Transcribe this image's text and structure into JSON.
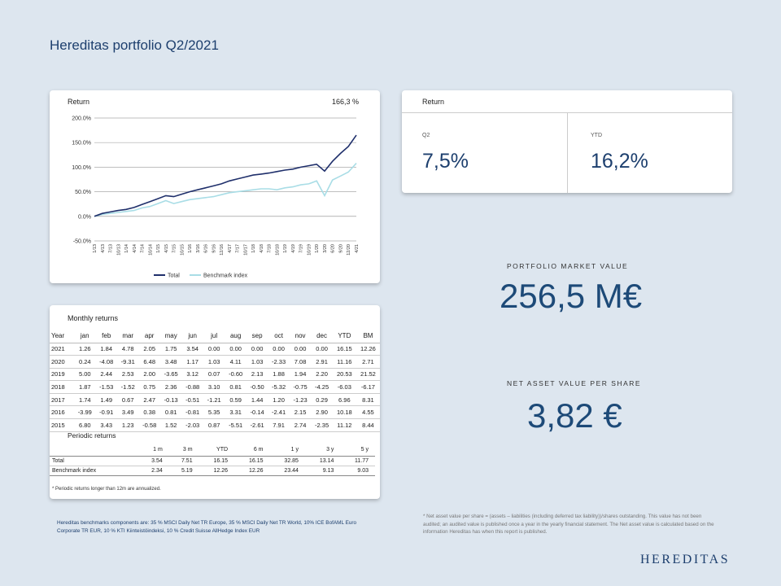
{
  "page": {
    "title": "Hereditas portfolio Q2/2021"
  },
  "colors": {
    "total": "#1f2f6b",
    "benchmark": "#a9dde6",
    "accent": "#1d4a78"
  },
  "chart_card": {
    "label": "Return",
    "value": "166,3 %"
  },
  "chart_data": {
    "type": "line",
    "ylim": [
      -50,
      200
    ],
    "yticks": [
      "200.0%",
      "150.0%",
      "100.0%",
      "50.0%",
      "0.0%",
      "-50.0%"
    ],
    "ytick_values": [
      200,
      150,
      100,
      50,
      0,
      -50
    ],
    "x_tick_labels": [
      "1/13",
      "4/13",
      "7/13",
      "10/13",
      "1/14",
      "4/14",
      "7/14",
      "10/14",
      "1/15",
      "4/15",
      "7/15",
      "10/15",
      "1/16",
      "3/16",
      "6/16",
      "9/16",
      "12/16",
      "4/17",
      "7/17",
      "10/17",
      "1/18",
      "4/18",
      "7/18",
      "10/18",
      "1/19",
      "4/19",
      "7/19",
      "10/19",
      "1/20",
      "3/20",
      "6/20",
      "9/20",
      "12/20",
      "4/21"
    ],
    "series": [
      {
        "name": "Total",
        "values": [
          0,
          6,
          9,
          12,
          14,
          18,
          24,
          30,
          36,
          42,
          40,
          45,
          50,
          54,
          58,
          62,
          66,
          72,
          76,
          80,
          84,
          86,
          88,
          91,
          94,
          96,
          100,
          103,
          106,
          92,
          112,
          128,
          142,
          165
        ]
      },
      {
        "name": "Benchmark index",
        "values": [
          0,
          4,
          6,
          8,
          10,
          12,
          17,
          20,
          26,
          32,
          26,
          30,
          34,
          36,
          38,
          40,
          44,
          48,
          50,
          52,
          54,
          56,
          56,
          54,
          58,
          60,
          64,
          66,
          72,
          42,
          74,
          82,
          90,
          108
        ]
      }
    ]
  },
  "return_card": {
    "label": "Return",
    "q2_label": "Q2",
    "q2_value": "7,5%",
    "ytd_label": "YTD",
    "ytd_value": "16,2%"
  },
  "kpis": {
    "market_label": "PORTFOLIO MARKET VALUE",
    "market_value": "256,5 M€",
    "nav_label": "NET ASSET VALUE PER SHARE",
    "nav_value": "3,82 €"
  },
  "monthly": {
    "title": "Monthly returns",
    "headers": [
      "Year",
      "jan",
      "feb",
      "mar",
      "apr",
      "may",
      "jun",
      "jul",
      "aug",
      "sep",
      "oct",
      "nov",
      "dec",
      "YTD",
      "BM"
    ],
    "rows": [
      [
        "2021",
        "1.26",
        "1.84",
        "4.78",
        "2.05",
        "1.75",
        "3.54",
        "0.00",
        "0.00",
        "0.00",
        "0.00",
        "0.00",
        "0.00",
        "16.15",
        "12.26"
      ],
      [
        "2020",
        "0.24",
        "-4.08",
        "-9.31",
        "6.48",
        "3.48",
        "1.17",
        "1.03",
        "4.11",
        "1.03",
        "-2.33",
        "7.08",
        "2.91",
        "11.16",
        "2.71"
      ],
      [
        "2019",
        "5.00",
        "2.44",
        "2.53",
        "2.00",
        "-3.65",
        "3.12",
        "0.07",
        "-0.60",
        "2.13",
        "1.88",
        "1.94",
        "2.20",
        "20.53",
        "21.52"
      ],
      [
        "2018",
        "1.87",
        "-1.53",
        "-1.52",
        "0.75",
        "2.36",
        "-0.88",
        "3.10",
        "0.81",
        "-0.50",
        "-5.32",
        "-0.75",
        "-4.25",
        "-6.03",
        "-6.17"
      ],
      [
        "2017",
        "1.74",
        "1.49",
        "0.67",
        "2.47",
        "-0.13",
        "-0.51",
        "-1.21",
        "0.59",
        "1.44",
        "1.20",
        "-1.23",
        "0.29",
        "6.96",
        "8.31"
      ],
      [
        "2016",
        "-3.99",
        "-0.91",
        "3.49",
        "0.38",
        "0.81",
        "-0.81",
        "5.35",
        "3.31",
        "-0.14",
        "-2.41",
        "2.15",
        "2.90",
        "10.18",
        "4.55"
      ],
      [
        "2015",
        "6.80",
        "3.43",
        "1.23",
        "-0.58",
        "1.52",
        "-2.03",
        "0.87",
        "-5.51",
        "-2.61",
        "7.91",
        "2.74",
        "-2.35",
        "11.12",
        "8.44"
      ]
    ]
  },
  "periodic": {
    "title": "Periodic returns",
    "headers": [
      "",
      "1 m",
      "3 m",
      "YTD",
      "6 m",
      "1 y",
      "3 y",
      "5 y"
    ],
    "rows": [
      [
        "Total",
        "3.54",
        "7.51",
        "16.15",
        "16.15",
        "32.85",
        "13.14",
        "11.77"
      ],
      [
        "Benchmark index",
        "2.34",
        "5.19",
        "12.26",
        "12.26",
        "23.44",
        "9.13",
        "9.03"
      ]
    ],
    "footnote": "* Periodic returns longer than 12m are annualized."
  },
  "notes": {
    "benchmark": "Hereditas benchmarks components are: 35 % MSCI Daily Net TR Europe, 35 % MSCI Daily Net TR World, 10% ICE BofAML Euro Corporate TR EUR, 10 % KTI Kiinteistöindeksi, 10 % Credit Suisse AllHedge Index EUR",
    "nav": "* Net asset value per share = (assets – liabilities (including deferred tax liability))/shares outstanding. This value has not been audited; an audited value is published once a year in the yearly financial statement. The Net asset value is calculated based on the information Hereditas has when this report is published."
  },
  "logo": "HEREDITAS"
}
